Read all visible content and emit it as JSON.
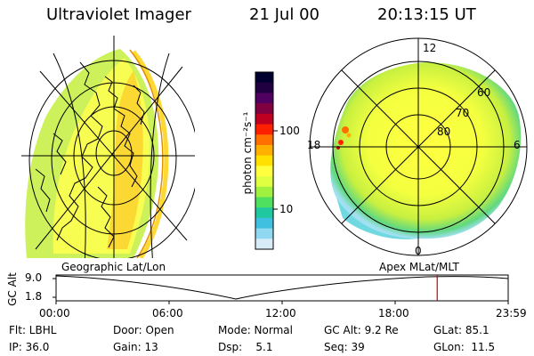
{
  "header": {
    "app": "Ultraviolet Imager",
    "date": "21 Jul 00",
    "time": "20:13:15 UT"
  },
  "colorbar": {
    "label": "photon cm⁻²s⁻¹",
    "ticks": [
      "100",
      "10"
    ],
    "colors": [
      "#000030",
      "#200040",
      "#500060",
      "#800040",
      "#c00020",
      "#ff2000",
      "#ff7000",
      "#ffb000",
      "#ffe000",
      "#ffff40",
      "#e0ff40",
      "#a0f040",
      "#50e060",
      "#20c8a0",
      "#40c0e0",
      "#90d8f0",
      "#d8ecf8"
    ]
  },
  "left_map": {
    "label": "Geographic Lat/Lon"
  },
  "right_map": {
    "label": "Apex MLat/MLT",
    "mlt_labels": {
      "top": "12",
      "left": "18",
      "right": "6",
      "bottom": "0"
    },
    "lat_labels": [
      "60",
      "70",
      "80"
    ]
  },
  "timeline": {
    "ylabel": "GC Alt",
    "y_ticks": [
      "9.0",
      "1.8"
    ],
    "x_ticks": [
      "00:00",
      "06:00",
      "12:00",
      "18:00",
      "23:59"
    ],
    "current_fraction": 0.843
  },
  "footer": {
    "row1": [
      {
        "name": "flt",
        "text": "Flt: LBHL"
      },
      {
        "name": "door",
        "text": "Door: Open"
      },
      {
        "name": "mode",
        "text": "Mode: Normal"
      },
      {
        "name": "gcalt",
        "text": "GC Alt: 9.2 Re"
      },
      {
        "name": "glat",
        "text": "GLat: 85.1"
      }
    ],
    "row2": [
      {
        "name": "ip",
        "text": "IP: 36.0"
      },
      {
        "name": "gain",
        "text": "Gain: 13"
      },
      {
        "name": "dsp",
        "text": "Dsp:    5.1"
      },
      {
        "name": "seq",
        "text": "Seq: 39"
      },
      {
        "name": "glon",
        "text": "GLon:  11.5"
      }
    ]
  },
  "style": {
    "marker_color": "#cc0000"
  }
}
